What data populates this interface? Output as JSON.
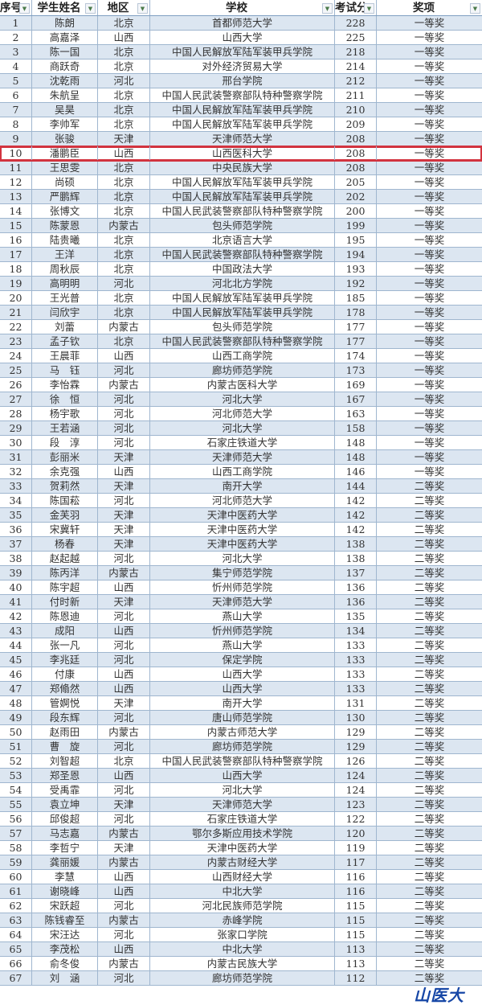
{
  "header": {
    "no": "序号",
    "name": "学生姓名",
    "region": "地区",
    "school": "学校",
    "score": "考试分",
    "award": "奖项"
  },
  "highlight_color": "#d2333f",
  "highlighted_row": 10,
  "logo_text": "山医大",
  "rows": [
    [
      "1",
      "陈朗",
      "北京",
      "首都师范大学",
      "228",
      "一等奖"
    ],
    [
      "2",
      "高嘉泽",
      "山西",
      "山西大学",
      "225",
      "一等奖"
    ],
    [
      "3",
      "陈一国",
      "北京",
      "中国人民解放军陆军装甲兵学院",
      "218",
      "一等奖"
    ],
    [
      "4",
      "商跃奇",
      "北京",
      "对外经济贸易大学",
      "214",
      "一等奖"
    ],
    [
      "5",
      "沈乾雨",
      "河北",
      "邢台学院",
      "212",
      "一等奖"
    ],
    [
      "6",
      "朱航呈",
      "北京",
      "中国人民武装警察部队特种警察学院",
      "211",
      "一等奖"
    ],
    [
      "7",
      "吴昊",
      "北京",
      "中国人民解放军陆军装甲兵学院",
      "210",
      "一等奖"
    ],
    [
      "8",
      "李帅军",
      "北京",
      "中国人民解放军陆军装甲兵学院",
      "209",
      "一等奖"
    ],
    [
      "9",
      "张骏",
      "天津",
      "天津师范大学",
      "208",
      "一等奖"
    ],
    [
      "10",
      "潘鹏臣",
      "山西",
      "山西医科大学",
      "208",
      "一等奖"
    ],
    [
      "11",
      "王思雯",
      "北京",
      "中央民族大学",
      "208",
      "一等奖"
    ],
    [
      "12",
      "尚硕",
      "北京",
      "中国人民解放军陆军装甲兵学院",
      "205",
      "一等奖"
    ],
    [
      "13",
      "严鹏辉",
      "北京",
      "中国人民解放军陆军装甲兵学院",
      "202",
      "一等奖"
    ],
    [
      "14",
      "张博文",
      "北京",
      "中国人民武装警察部队特种警察学院",
      "200",
      "一等奖"
    ],
    [
      "15",
      "陈蒙恩",
      "内蒙古",
      "包头师范学院",
      "199",
      "一等奖"
    ],
    [
      "16",
      "陆贵曦",
      "北京",
      "北京语言大学",
      "195",
      "一等奖"
    ],
    [
      "17",
      "王洋",
      "北京",
      "中国人民武装警察部队特种警察学院",
      "194",
      "一等奖"
    ],
    [
      "18",
      "周秋辰",
      "北京",
      "中国政法大学",
      "193",
      "一等奖"
    ],
    [
      "19",
      "高明明",
      "河北",
      "河北北方学院",
      "192",
      "一等奖"
    ],
    [
      "20",
      "王光普",
      "北京",
      "中国人民解放军陆军装甲兵学院",
      "185",
      "一等奖"
    ],
    [
      "21",
      "闫欣宇",
      "北京",
      "中国人民解放军陆军装甲兵学院",
      "178",
      "一等奖"
    ],
    [
      "22",
      "刘蕾",
      "内蒙古",
      "包头师范学院",
      "177",
      "一等奖"
    ],
    [
      "23",
      "孟子钦",
      "北京",
      "中国人民武装警察部队特种警察学院",
      "177",
      "一等奖"
    ],
    [
      "24",
      "王晨菲",
      "山西",
      "山西工商学院",
      "174",
      "一等奖"
    ],
    [
      "25",
      "马　钰",
      "河北",
      "廊坊师范学院",
      "173",
      "一等奖"
    ],
    [
      "26",
      "李怡霖",
      "内蒙古",
      "内蒙古医科大学",
      "169",
      "一等奖"
    ],
    [
      "27",
      "徐　恒",
      "河北",
      "河北大学",
      "167",
      "一等奖"
    ],
    [
      "28",
      "杨宇歌",
      "河北",
      "河北师范大学",
      "163",
      "一等奖"
    ],
    [
      "29",
      "王若涵",
      "河北",
      "河北大学",
      "158",
      "一等奖"
    ],
    [
      "30",
      "段　淳",
      "河北",
      "石家庄铁道大学",
      "148",
      "一等奖"
    ],
    [
      "31",
      "彭丽米",
      "天津",
      "天津师范大学",
      "148",
      "一等奖"
    ],
    [
      "32",
      "余克强",
      "山西",
      "山西工商学院",
      "146",
      "一等奖"
    ],
    [
      "33",
      "贺莉然",
      "天津",
      "南开大学",
      "144",
      "二等奖"
    ],
    [
      "34",
      "陈国菘",
      "河北",
      "河北师范大学",
      "142",
      "二等奖"
    ],
    [
      "35",
      "金芙羽",
      "天津",
      "天津中医药大学",
      "142",
      "二等奖"
    ],
    [
      "36",
      "宋冀轩",
      "天津",
      "天津中医药大学",
      "142",
      "二等奖"
    ],
    [
      "37",
      "杨春",
      "天津",
      "天津中医药大学",
      "138",
      "二等奖"
    ],
    [
      "38",
      "赵起越",
      "河北",
      "河北大学",
      "138",
      "二等奖"
    ],
    [
      "39",
      "陈丙洋",
      "内蒙古",
      "集宁师范学院",
      "137",
      "二等奖"
    ],
    [
      "40",
      "陈宇超",
      "山西",
      "忻州师范学院",
      "136",
      "二等奖"
    ],
    [
      "41",
      "付时新",
      "天津",
      "天津师范大学",
      "136",
      "二等奖"
    ],
    [
      "42",
      "陈恩迪",
      "河北",
      "燕山大学",
      "135",
      "二等奖"
    ],
    [
      "43",
      "成阳",
      "山西",
      "忻州师范学院",
      "134",
      "二等奖"
    ],
    [
      "44",
      "张一凡",
      "河北",
      "燕山大学",
      "133",
      "二等奖"
    ],
    [
      "45",
      "李兆廷",
      "河北",
      "保定学院",
      "133",
      "二等奖"
    ],
    [
      "46",
      "付康",
      "山西",
      "山西大学",
      "133",
      "二等奖"
    ],
    [
      "47",
      "郑翛然",
      "山西",
      "山西大学",
      "133",
      "二等奖"
    ],
    [
      "48",
      "管婀悦",
      "天津",
      "南开大学",
      "131",
      "二等奖"
    ],
    [
      "49",
      "段东辉",
      "河北",
      "唐山师范学院",
      "130",
      "二等奖"
    ],
    [
      "50",
      "赵雨田",
      "内蒙古",
      "内蒙古师范大学",
      "129",
      "二等奖"
    ],
    [
      "51",
      "曹　旋",
      "河北",
      "廊坊师范学院",
      "129",
      "二等奖"
    ],
    [
      "52",
      "刘智超",
      "北京",
      "中国人民武装警察部队特种警察学院",
      "126",
      "二等奖"
    ],
    [
      "53",
      "郑圣恩",
      "山西",
      "山西大学",
      "124",
      "二等奖"
    ],
    [
      "54",
      "受禹霏",
      "河北",
      "河北大学",
      "124",
      "二等奖"
    ],
    [
      "55",
      "袁立坤",
      "天津",
      "天津师范大学",
      "123",
      "二等奖"
    ],
    [
      "56",
      "邱俊超",
      "河北",
      "石家庄铁道大学",
      "122",
      "二等奖"
    ],
    [
      "57",
      "马志嘉",
      "内蒙古",
      "鄂尔多斯应用技术学院",
      "120",
      "二等奖"
    ],
    [
      "58",
      "李哲宁",
      "天津",
      "天津中医药大学",
      "119",
      "二等奖"
    ],
    [
      "59",
      "龚丽媛",
      "内蒙古",
      "内蒙古财经大学",
      "117",
      "二等奖"
    ],
    [
      "60",
      "李慧",
      "山西",
      "山西财经大学",
      "116",
      "二等奖"
    ],
    [
      "61",
      "谢晓峰",
      "山西",
      "中北大学",
      "116",
      "二等奖"
    ],
    [
      "62",
      "宋跃超",
      "河北",
      "河北民族师范学院",
      "115",
      "二等奖"
    ],
    [
      "63",
      "陈钱睿至",
      "内蒙古",
      "赤峰学院",
      "115",
      "二等奖"
    ],
    [
      "64",
      "宋汪达",
      "河北",
      "张家口学院",
      "115",
      "二等奖"
    ],
    [
      "65",
      "李茂松",
      "山西",
      "中北大学",
      "113",
      "二等奖"
    ],
    [
      "66",
      "俞冬俊",
      "内蒙古",
      "内蒙古民族大学",
      "113",
      "二等奖"
    ],
    [
      "67",
      "刘　涵",
      "河北",
      "廊坊师范学院",
      "112",
      "二等奖"
    ]
  ]
}
